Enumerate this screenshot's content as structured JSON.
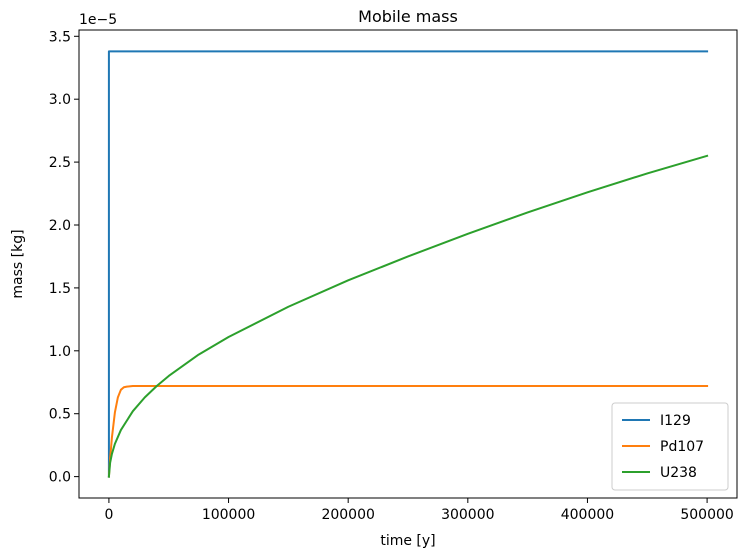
{
  "chart_data": {
    "type": "line",
    "title": "Mobile mass",
    "xlabel": "time [y]",
    "ylabel": "mass [kg]",
    "y_offset_label": "1e−5",
    "y_scale_exponent": -5,
    "xlim": [
      -25000,
      525000
    ],
    "ylim": [
      -0.17,
      3.55
    ],
    "x_ticks": [
      0,
      100000,
      200000,
      300000,
      400000,
      500000
    ],
    "x_tick_labels": [
      "0",
      "100000",
      "200000",
      "300000",
      "400000",
      "500000"
    ],
    "y_ticks": [
      0.0,
      0.5,
      1.0,
      1.5,
      2.0,
      2.5,
      3.0,
      3.5
    ],
    "y_tick_labels": [
      "0.0",
      "0.5",
      "1.0",
      "1.5",
      "2.0",
      "2.5",
      "3.0",
      "3.5"
    ],
    "grid": false,
    "legend_position": "bottom-right",
    "series": [
      {
        "name": "I129",
        "color": "#1f77b4",
        "x": [
          0,
          0,
          500000
        ],
        "y": [
          0.0,
          3.38,
          3.38
        ]
      },
      {
        "name": "Pd107",
        "color": "#ff7f0e",
        "x": [
          0,
          1000,
          2500,
          5000,
          7500,
          10000,
          12500,
          15000,
          20000,
          25000,
          30000,
          40000,
          50000,
          100000,
          200000,
          300000,
          400000,
          500000
        ],
        "y": [
          0.0,
          0.14,
          0.31,
          0.51,
          0.63,
          0.69,
          0.71,
          0.715,
          0.72,
          0.72,
          0.72,
          0.72,
          0.72,
          0.72,
          0.72,
          0.72,
          0.72,
          0.72
        ]
      },
      {
        "name": "U238",
        "color": "#2ca02c",
        "x": [
          0,
          1000,
          2500,
          5000,
          10000,
          20000,
          30000,
          40000,
          50000,
          75000,
          100000,
          150000,
          200000,
          250000,
          300000,
          350000,
          400000,
          450000,
          500000
        ],
        "y": [
          0.0,
          0.11,
          0.18,
          0.26,
          0.37,
          0.52,
          0.63,
          0.72,
          0.8,
          0.97,
          1.11,
          1.35,
          1.56,
          1.75,
          1.93,
          2.1,
          2.26,
          2.41,
          2.55
        ]
      }
    ]
  }
}
